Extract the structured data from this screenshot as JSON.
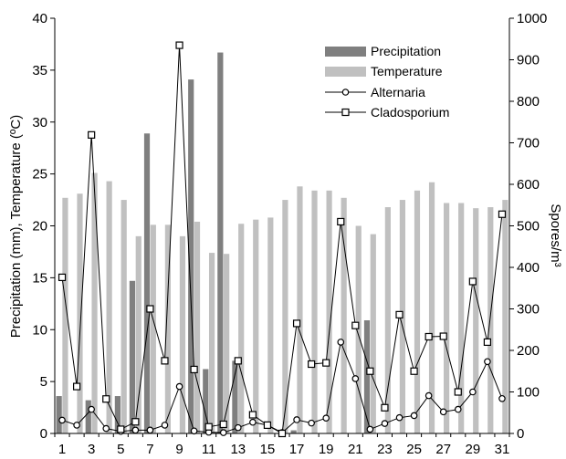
{
  "chart_data": {
    "type": "bar",
    "title": "",
    "x": [
      1,
      2,
      3,
      4,
      5,
      6,
      7,
      8,
      9,
      10,
      11,
      12,
      13,
      14,
      15,
      16,
      17,
      18,
      19,
      20,
      21,
      22,
      23,
      24,
      25,
      26,
      27,
      28,
      29,
      30,
      31
    ],
    "x_tick_labels": [
      "1",
      "3",
      "5",
      "7",
      "9",
      "11",
      "13",
      "15",
      "17",
      "19",
      "21",
      "23",
      "25",
      "27",
      "29",
      "31"
    ],
    "xlabel": "",
    "ylabel_left": "Precipitation (mm), Temperature (ºC)",
    "ylabel_right": "Spores/m³",
    "ylim_left": [
      0,
      40
    ],
    "ylim_right": [
      0,
      1000
    ],
    "y_ticks_left": [
      "0",
      "5",
      "10",
      "15",
      "20",
      "25",
      "30",
      "35",
      "40"
    ],
    "y_ticks_right": [
      "0",
      "100",
      "200",
      "300",
      "400",
      "500",
      "600",
      "700",
      "800",
      "900",
      "1000"
    ],
    "grid": false,
    "legend_position": "top-right",
    "series": [
      {
        "name": "Precipitation",
        "kind": "bar",
        "axis": "left",
        "color": "#7f7f7f",
        "values": [
          3.6,
          0,
          3.2,
          0,
          3.6,
          14.7,
          28.9,
          0,
          0,
          34.1,
          6.2,
          36.7,
          7.0,
          0,
          0,
          0,
          0.3,
          0,
          0,
          0,
          0,
          10.9,
          0,
          0,
          0,
          0,
          0,
          0,
          0,
          0,
          0
        ]
      },
      {
        "name": "Temperature",
        "kind": "bar",
        "axis": "left",
        "color": "#c0c0c0",
        "values": [
          22.7,
          23.1,
          25.1,
          24.3,
          22.5,
          19.0,
          20.1,
          20.1,
          19.0,
          20.4,
          17.4,
          17.3,
          20.2,
          20.6,
          20.8,
          22.5,
          23.8,
          23.4,
          23.4,
          22.7,
          20.0,
          19.2,
          21.8,
          22.5,
          23.4,
          24.2,
          22.2,
          22.2,
          21.7,
          21.8,
          22.5
        ]
      },
      {
        "name": "Alternaria",
        "kind": "line",
        "axis": "right",
        "marker": "circle",
        "color": "#000000",
        "values": [
          32,
          20,
          58,
          12,
          5,
          8,
          8,
          20,
          113,
          6,
          3,
          2,
          14,
          27,
          20,
          2,
          33,
          25,
          37,
          220,
          132,
          10,
          24,
          38,
          43,
          91,
          52,
          58,
          100,
          173,
          84
        ]
      },
      {
        "name": "Cladosporium",
        "kind": "line",
        "axis": "right",
        "marker": "square",
        "color": "#000000",
        "values": [
          376,
          113,
          719,
          83,
          10,
          28,
          300,
          175,
          935,
          154,
          16,
          22,
          175,
          45,
          20,
          0,
          265,
          167,
          170,
          510,
          260,
          150,
          62,
          286,
          150,
          233,
          234,
          100,
          366,
          220,
          528
        ]
      }
    ]
  }
}
